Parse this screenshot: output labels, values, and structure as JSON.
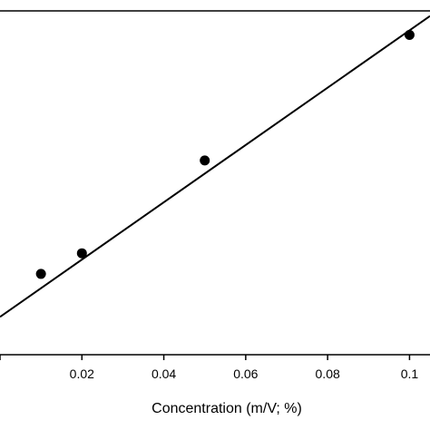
{
  "chart_data": {
    "type": "scatter",
    "xlabel": "Concentration (m/V; %)",
    "ylabel": "",
    "xlim": [
      0.0,
      0.105
    ],
    "ylim": [
      0,
      1
    ],
    "x_ticks": [
      0.0,
      0.02,
      0.04,
      0.06,
      0.08,
      0.1
    ],
    "x_tick_labels": [
      "",
      "0.02",
      "0.04",
      "0.06",
      "0.08",
      "0.1"
    ],
    "points": [
      {
        "x": 0.01,
        "y": 0.235
      },
      {
        "x": 0.02,
        "y": 0.295
      },
      {
        "x": 0.05,
        "y": 0.565
      },
      {
        "x": 0.1,
        "y": 0.93
      }
    ],
    "fit_line": {
      "x": [
        0.0,
        0.105
      ],
      "y": [
        0.11,
        0.985
      ]
    },
    "grid": false,
    "legend": "none",
    "colors": {
      "axis": "#000000",
      "marker": "#000000",
      "line": "#000000"
    }
  }
}
